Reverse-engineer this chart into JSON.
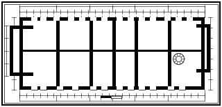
{
  "bg_color": "#ffffff",
  "line_color": "#000000",
  "fig_bg": "#ffffff",
  "lw_thick": 1.5,
  "lw_thin": 0.5,
  "lw_med": 0.9,
  "lw_dim": 0.4
}
